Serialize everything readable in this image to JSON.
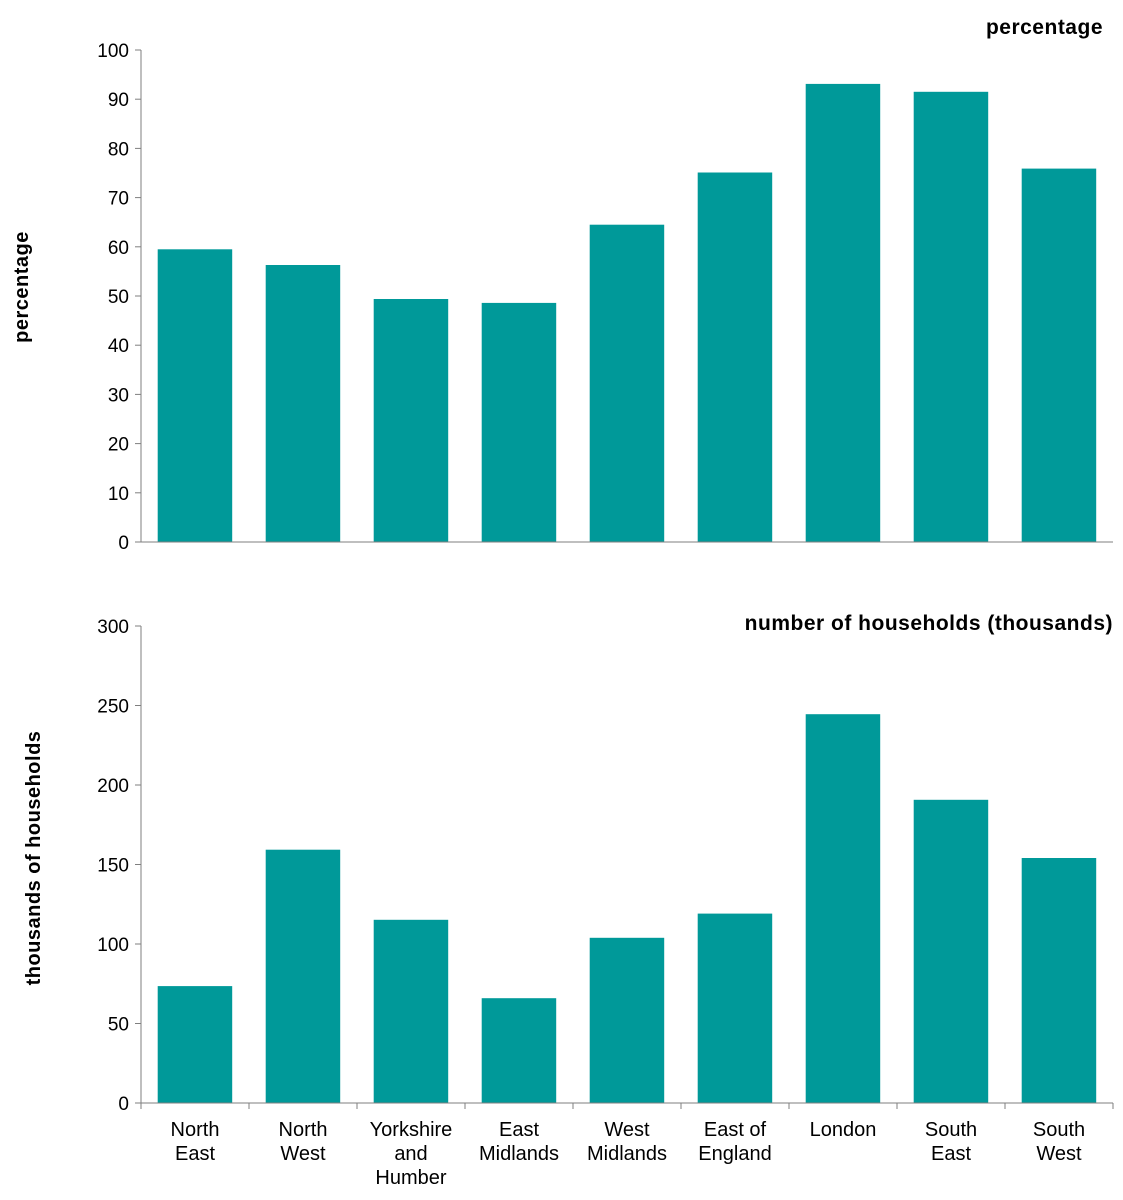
{
  "chart_data": [
    {
      "type": "bar",
      "title": "percentage",
      "xlabel": "",
      "ylabel": "percentage",
      "ylim": [
        0,
        100
      ],
      "yticks": [
        0,
        10,
        20,
        30,
        40,
        50,
        60,
        70,
        80,
        90,
        100
      ],
      "categories": [
        "North East",
        "North West",
        "Yorkshire and Humber",
        "East Midlands",
        "West Midlands",
        "East of England",
        "London",
        "South East",
        "South West"
      ],
      "values": [
        59.5,
        56.3,
        49.4,
        48.6,
        64.5,
        75.1,
        93.1,
        91.5,
        75.9
      ],
      "color": "#009999",
      "grid": false,
      "show_category_labels": false
    },
    {
      "type": "bar",
      "title": "number of households (thousands)",
      "xlabel": "",
      "ylabel": "thousands of households",
      "ylim": [
        0,
        300
      ],
      "yticks": [
        0,
        50,
        100,
        150,
        200,
        250,
        300
      ],
      "categories": [
        "North East",
        "North West",
        "Yorkshire and Humber",
        "East Midlands",
        "West Midlands",
        "East of England",
        "London",
        "South East",
        "South West"
      ],
      "category_label_lines": [
        [
          "North",
          "East"
        ],
        [
          "North",
          "West"
        ],
        [
          "Yorkshire",
          "and",
          "Humber"
        ],
        [
          "East",
          "Midlands"
        ],
        [
          "West",
          "Midlands"
        ],
        [
          "East of",
          "England"
        ],
        [
          "London"
        ],
        [
          "South",
          "East"
        ],
        [
          "South",
          "West"
        ]
      ],
      "values": [
        73.5,
        159.3,
        115.2,
        65.9,
        103.9,
        119.1,
        244.5,
        190.7,
        154.1
      ],
      "color": "#009999",
      "grid": false,
      "show_category_labels": true
    }
  ]
}
